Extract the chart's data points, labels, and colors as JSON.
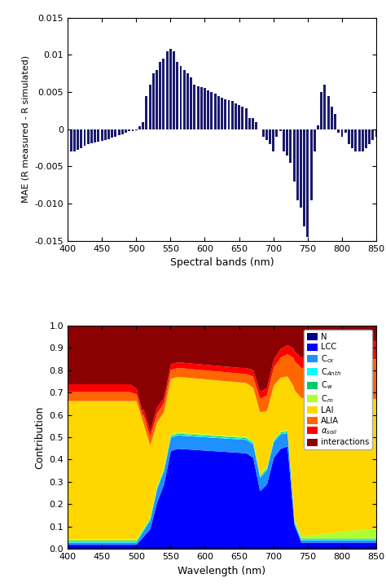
{
  "bar_color": "#1a1a6e",
  "bar_xlabel": "Spectral bands (nm)",
  "bar_ylabel": "MAE (R measured - R simulated)",
  "bar_xlim": [
    400,
    850
  ],
  "bar_ylim": [
    -0.015,
    0.015
  ],
  "bar_yticks": [
    -0.015,
    -0.01,
    -0.005,
    0,
    0.005,
    0.01,
    0.015
  ],
  "bar_xticks": [
    400,
    450,
    500,
    550,
    600,
    650,
    700,
    750,
    800,
    850
  ],
  "stack_xlabel": "Wavelength (nm)",
  "stack_ylabel": "Contribution",
  "stack_xlim": [
    400,
    850
  ],
  "stack_ylim": [
    0,
    1
  ],
  "stack_yticks": [
    0,
    0.1,
    0.2,
    0.3,
    0.4,
    0.5,
    0.6,
    0.7,
    0.8,
    0.9,
    1.0
  ],
  "stack_xticks": [
    400,
    450,
    500,
    550,
    600,
    650,
    700,
    750,
    800,
    850
  ],
  "legend_label_display": [
    "N",
    "LCC",
    "C$_{cx}$",
    "C$_{Anth}$",
    "C$_w$",
    "C$_m$",
    "LAI",
    "ALIA",
    "$\\alpha_{soil}$",
    "interactions"
  ],
  "layer_colors": [
    "#00008B",
    "#0000FF",
    "#1E90FF",
    "#00FFFF",
    "#00CD66",
    "#ADFF2F",
    "#FFD700",
    "#FF6600",
    "#FF0000",
    "#8B0000"
  ]
}
